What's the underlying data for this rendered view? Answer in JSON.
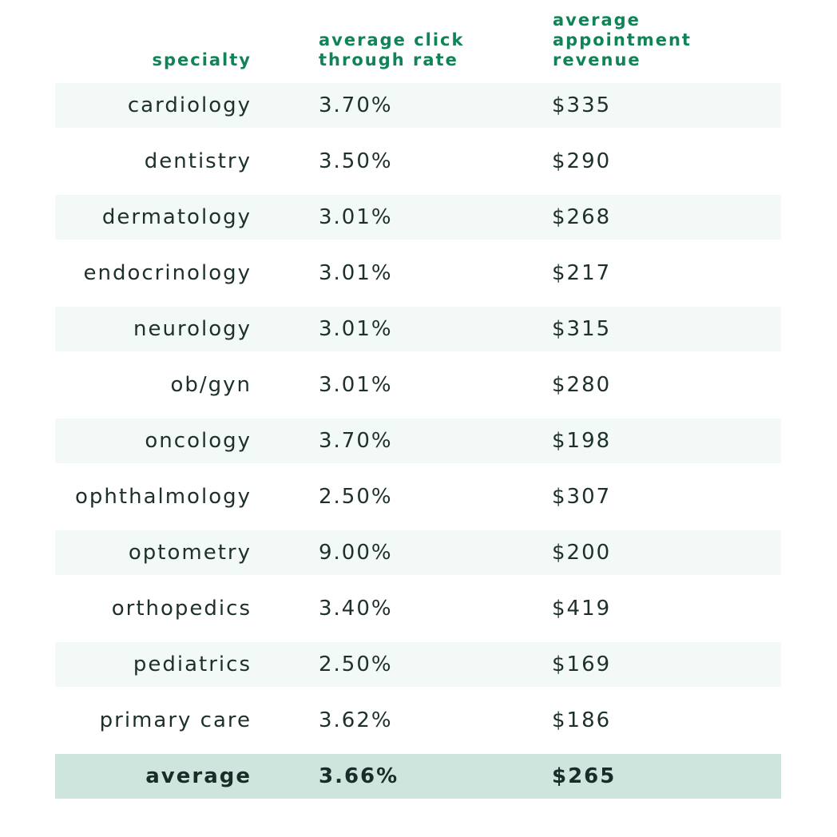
{
  "chart_data": {
    "type": "table",
    "columns": [
      "specialty",
      "average click through rate",
      "average appointment revenue"
    ],
    "header_lines": {
      "specialty": [
        "specialty"
      ],
      "ctr": [
        "average click",
        "through rate"
      ],
      "revenue": [
        "average appointment",
        "revenue"
      ]
    },
    "rows": [
      {
        "specialty": "cardiology",
        "ctr": "3.70%",
        "revenue": "$335"
      },
      {
        "specialty": "dentistry",
        "ctr": "3.50%",
        "revenue": "$290"
      },
      {
        "specialty": "dermatology",
        "ctr": "3.01%",
        "revenue": "$268"
      },
      {
        "specialty": "endocrinology",
        "ctr": "3.01%",
        "revenue": "$217"
      },
      {
        "specialty": "neurology",
        "ctr": "3.01%",
        "revenue": "$315"
      },
      {
        "specialty": "ob/gyn",
        "ctr": "3.01%",
        "revenue": "$280"
      },
      {
        "specialty": "oncology",
        "ctr": "3.70%",
        "revenue": "$198"
      },
      {
        "specialty": "ophthalmology",
        "ctr": "2.50%",
        "revenue": "$307"
      },
      {
        "specialty": "optometry",
        "ctr": "9.00%",
        "revenue": "$200"
      },
      {
        "specialty": "orthopedics",
        "ctr": "3.40%",
        "revenue": "$419"
      },
      {
        "specialty": "pediatrics",
        "ctr": "2.50%",
        "revenue": "$169"
      },
      {
        "specialty": "primary care",
        "ctr": "3.62%",
        "revenue": "$186"
      }
    ],
    "total": {
      "specialty": "average",
      "ctr": "3.66%",
      "revenue": "$265"
    }
  },
  "colors": {
    "header_text": "#0f8457",
    "body_text": "#1e302c",
    "stripe": "#f2f9f6",
    "total_band": "#cde5dc"
  }
}
